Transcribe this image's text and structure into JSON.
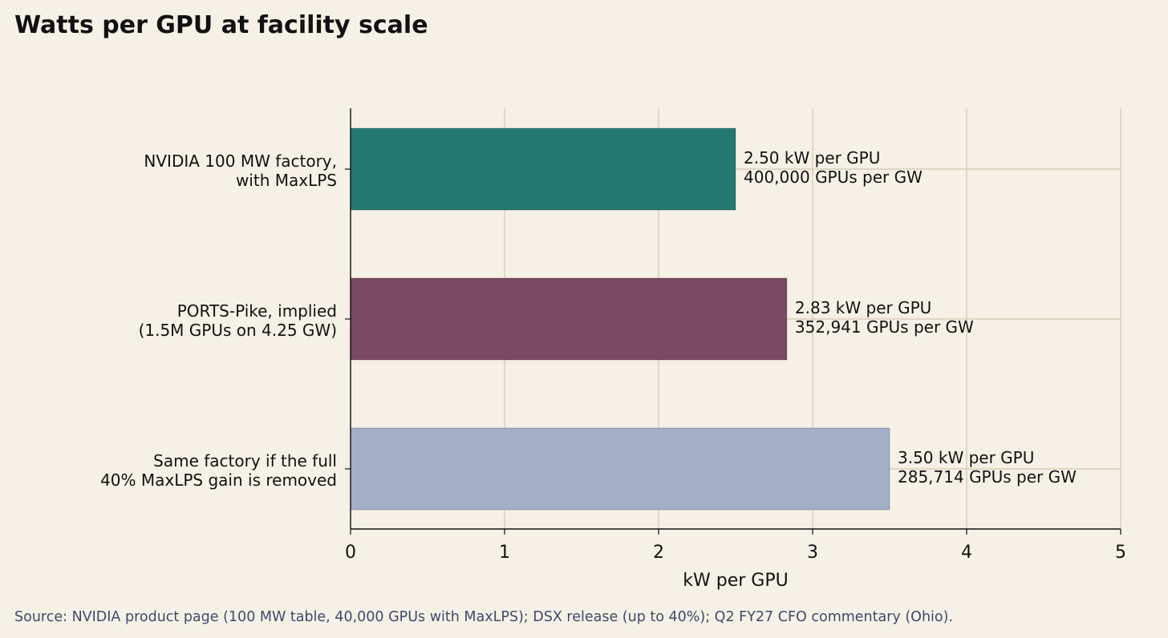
{
  "title": "Watts per GPU at facility scale",
  "source": "Source: NVIDIA product page (100 MW table, 40,000 GPUs with MaxLPS); DSX release (up to 40%); Q2 FY27 CFO commentary (Ohio).",
  "colors": {
    "background": "#f5f1e6",
    "grid": "#d4c8ae",
    "axis": "#111111",
    "source_text": "#3d4a6b"
  },
  "chart_data": {
    "type": "bar",
    "orientation": "horizontal",
    "title": "Watts per GPU at facility scale",
    "xlabel": "kW per GPU",
    "ylabel": "",
    "xlim": [
      0,
      5
    ],
    "xticks": [
      "0",
      "1",
      "2",
      "3",
      "4",
      "5"
    ],
    "grid": true,
    "bars": [
      {
        "label_lines": [
          "NVIDIA 100 MW factory,",
          "with MaxLPS"
        ],
        "value": 2.5,
        "color": "#247870",
        "annotation_lines": [
          "2.50 kW per GPU",
          "400,000 GPUs per GW"
        ]
      },
      {
        "label_lines": [
          "PORTS-Pike, implied",
          "(1.5M GPUs on 4.25 GW)"
        ],
        "value": 2.833,
        "color": "#7a4962",
        "annotation_lines": [
          "2.83 kW per GPU",
          "352,941 GPUs per GW"
        ]
      },
      {
        "label_lines": [
          "Same factory if the full",
          "40% MaxLPS gain is removed"
        ],
        "value": 3.5,
        "color": "#a3aec7",
        "annotation_lines": [
          "3.50 kW per GPU",
          "285,714 GPUs per GW"
        ]
      }
    ]
  }
}
